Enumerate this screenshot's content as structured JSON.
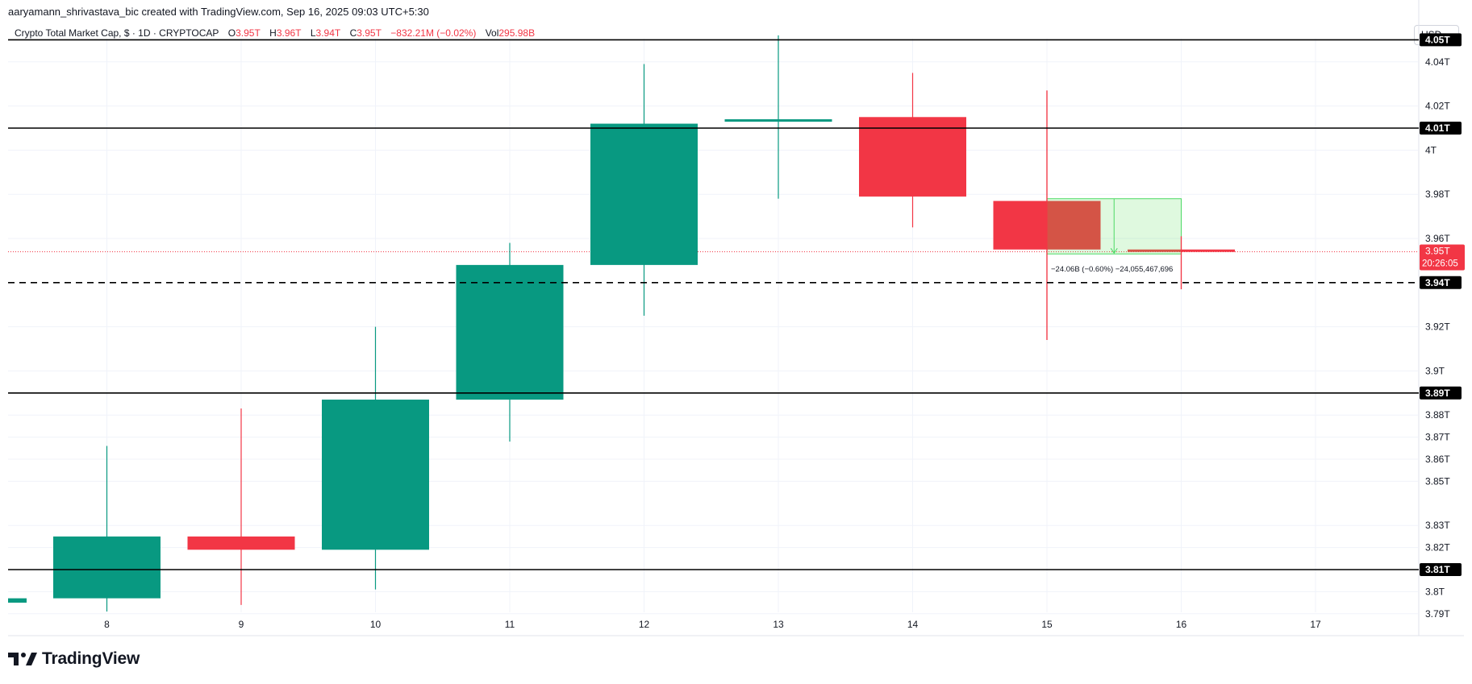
{
  "header": {
    "credit": "aaryamann_shrivastava_bic created with TradingView.com, Sep 16, 2025 09:03 UTC+5:30"
  },
  "legend": {
    "symbol": "Crypto Total Market Cap, $ · 1D · CRYPTOCAP",
    "open_label": "O",
    "open": "3.95T",
    "high_label": "H",
    "high": "3.96T",
    "low_label": "L",
    "low": "3.94T",
    "close_label": "C",
    "close": "3.95T",
    "change": "−832.21M (−0.02%)",
    "vol_label": "Vol",
    "vol": "295.98B"
  },
  "currency": "USD",
  "brand": {
    "name": "TradingView",
    "icon": "tradingview-logo-icon"
  },
  "colors": {
    "up": "#089981",
    "down": "#f23645",
    "line": "#000000",
    "grid": "#f0f3fa"
  },
  "chart_data": {
    "type": "candlestick",
    "x_tick_labels": [
      "8",
      "9",
      "10",
      "11",
      "12",
      "13",
      "14",
      "15",
      "16",
      "17"
    ],
    "y_tick_labels": [
      {
        "value": 4.04,
        "label": "4.04T"
      },
      {
        "value": 4.02,
        "label": "4.02T"
      },
      {
        "value": 4.0,
        "label": "4T"
      },
      {
        "value": 3.98,
        "label": "3.98T"
      },
      {
        "value": 3.96,
        "label": "3.96T"
      },
      {
        "value": 3.92,
        "label": "3.92T"
      },
      {
        "value": 3.9,
        "label": "3.9T"
      },
      {
        "value": 3.88,
        "label": "3.88T"
      },
      {
        "value": 3.87,
        "label": "3.87T"
      },
      {
        "value": 3.86,
        "label": "3.86T"
      },
      {
        "value": 3.85,
        "label": "3.85T"
      },
      {
        "value": 3.83,
        "label": "3.83T"
      },
      {
        "value": 3.82,
        "label": "3.82T"
      },
      {
        "value": 3.8,
        "label": "3.8T"
      },
      {
        "value": 3.79,
        "label": "3.79T"
      }
    ],
    "ylim": [
      3.788,
      4.061
    ],
    "unit": "T (trillion USD)",
    "candles": [
      {
        "day": "7",
        "open": 3.795,
        "high": 3.8,
        "low": 3.79,
        "close": 3.797,
        "partial": true
      },
      {
        "day": "8",
        "open": 3.797,
        "high": 3.866,
        "low": 3.791,
        "close": 3.825
      },
      {
        "day": "9",
        "open": 3.825,
        "high": 3.883,
        "low": 3.794,
        "close": 3.819
      },
      {
        "day": "10",
        "open": 3.819,
        "high": 3.92,
        "low": 3.801,
        "close": 3.887
      },
      {
        "day": "11",
        "open": 3.887,
        "high": 3.958,
        "low": 3.868,
        "close": 3.948
      },
      {
        "day": "12",
        "open": 3.948,
        "high": 4.039,
        "low": 3.925,
        "close": 4.012
      },
      {
        "day": "13",
        "open": 4.013,
        "high": 4.052,
        "low": 3.978,
        "close": 4.014
      },
      {
        "day": "14",
        "open": 4.015,
        "high": 4.035,
        "low": 3.965,
        "close": 3.979
      },
      {
        "day": "15",
        "open": 3.977,
        "high": 4.027,
        "low": 3.914,
        "close": 3.955
      },
      {
        "day": "16",
        "open": 3.955,
        "high": 3.961,
        "low": 3.937,
        "close": 3.954
      }
    ],
    "horizontal_levels": [
      {
        "value": 4.05,
        "label": "4.05T",
        "style": "solid"
      },
      {
        "value": 4.01,
        "label": "4.01T",
        "style": "solid"
      },
      {
        "value": 3.94,
        "label": "3.94T",
        "style": "dashed"
      },
      {
        "value": 3.89,
        "label": "3.89T",
        "style": "solid"
      },
      {
        "value": 3.81,
        "label": "3.81T",
        "style": "solid"
      }
    ],
    "last_price": {
      "value": 3.954,
      "label": "3.95T",
      "countdown": "20:26:05"
    },
    "measure_tool": {
      "from_day": "15",
      "to_day": "16",
      "top": 3.978,
      "bottom": 3.953,
      "label": "−24.06B (−0.60%) −24,055,467,696"
    }
  }
}
